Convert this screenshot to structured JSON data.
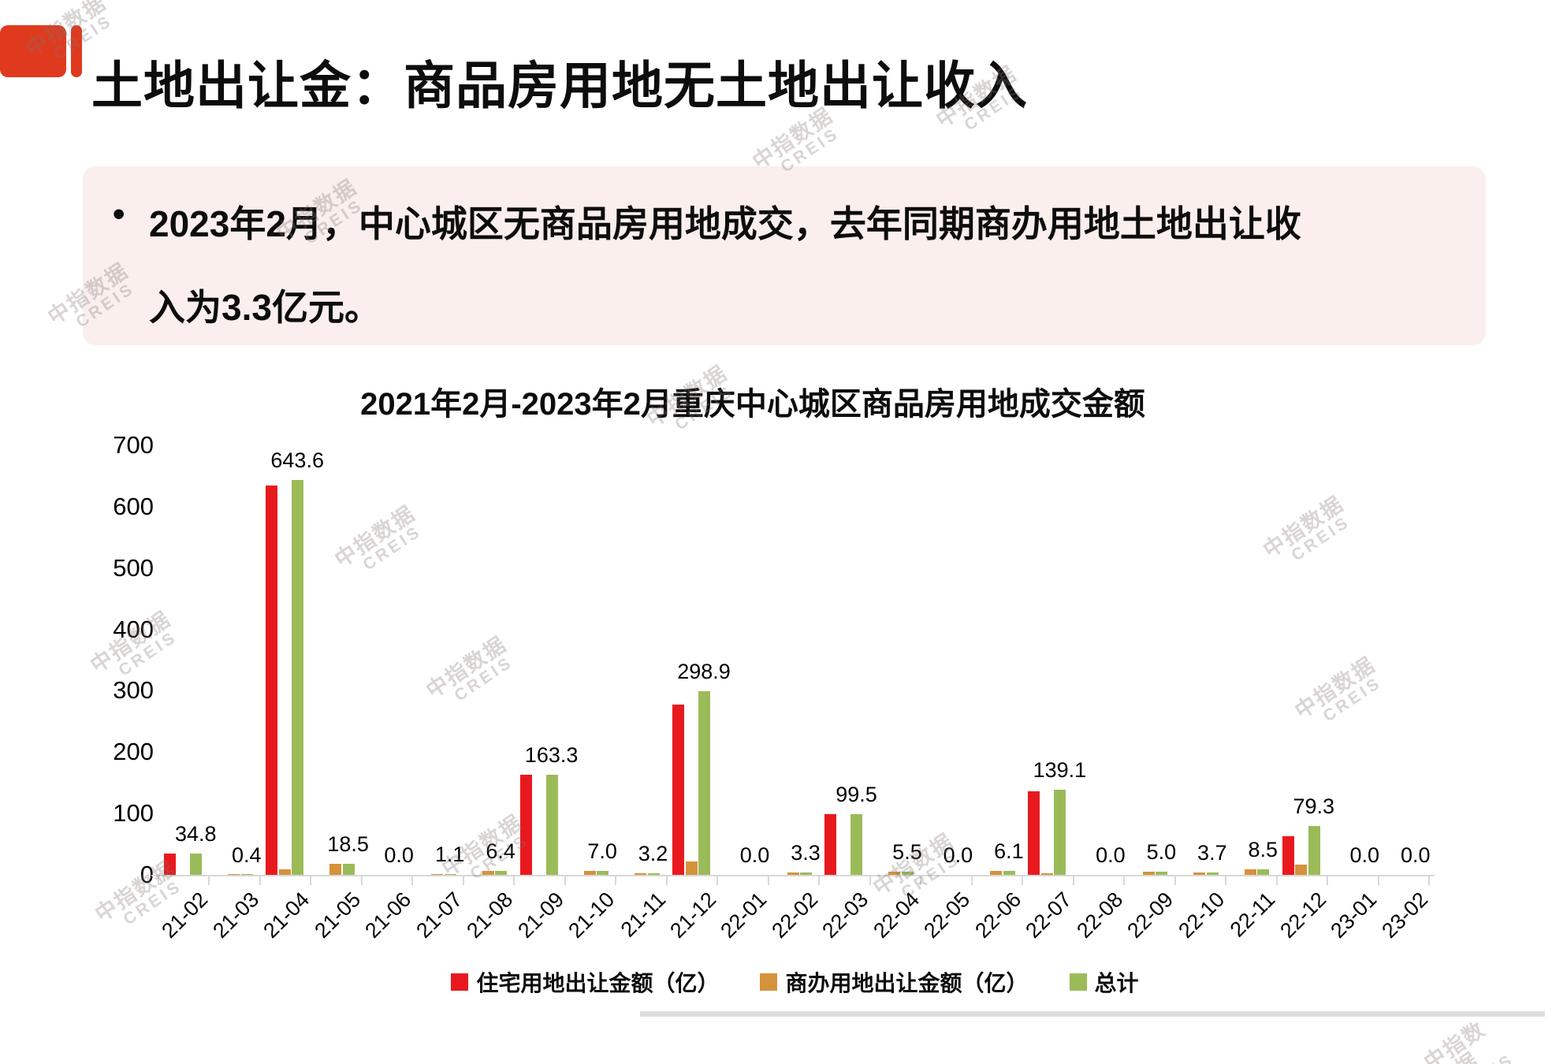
{
  "slide": {
    "title": "土地出让金：商品房用地无土地出让收入",
    "bullet_glyph": "•",
    "bullet_line1": "2023年2月，中心城区无商品房用地成交，去年同期商办用地土地出让收",
    "bullet_line2": "入为3.3亿元。",
    "watermark_line1": "中指数据",
    "watermark_line2": "CREIS"
  },
  "chart_data": {
    "type": "bar",
    "title": "2021年2月-2023年2月重庆中心城区商品房用地成交金额",
    "categories": [
      "21-02",
      "21-03",
      "21-04",
      "21-05",
      "21-06",
      "21-07",
      "21-08",
      "21-09",
      "21-10",
      "21-11",
      "21-12",
      "22-01",
      "22-02",
      "22-03",
      "22-04",
      "22-05",
      "22-06",
      "22-07",
      "22-08",
      "22-09",
      "22-10",
      "22-11",
      "22-12",
      "23-01",
      "23-02"
    ],
    "series": [
      {
        "name": "住宅用地出让金额（亿）",
        "color": "#E8191E",
        "values": [
          34.8,
          0,
          634.6,
          0,
          0,
          0,
          0,
          163.3,
          0,
          0,
          277.1,
          0,
          0,
          99.5,
          0,
          0,
          0,
          136.0,
          0,
          0,
          0,
          0,
          63.0,
          0,
          0
        ]
      },
      {
        "name": "商办用地出让金额（亿）",
        "color": "#D5923B",
        "values": [
          0,
          0.4,
          9.0,
          18.5,
          0,
          1.1,
          6.4,
          0,
          7.0,
          3.2,
          21.8,
          0,
          3.3,
          0,
          5.5,
          0,
          6.1,
          3.1,
          0,
          5.0,
          3.7,
          8.5,
          16.3,
          0,
          0
        ]
      },
      {
        "name": "总计",
        "color": "#9BBB59",
        "values": [
          34.8,
          0.4,
          643.6,
          18.5,
          0.0,
          1.1,
          6.4,
          163.3,
          7.0,
          3.2,
          298.9,
          0.0,
          3.3,
          99.5,
          5.5,
          0.0,
          6.1,
          139.1,
          0.0,
          5.0,
          3.7,
          8.5,
          79.3,
          0.0,
          0.0
        ]
      }
    ],
    "data_labels": [
      "34.8",
      "0.4",
      "643.6",
      "18.5",
      "0.0",
      "1.1",
      "6.4",
      "163.3",
      "7.0",
      "3.2",
      "298.9",
      "0.0",
      "3.3",
      "99.5",
      "5.5",
      "0.0",
      "6.1",
      "139.1",
      "0.0",
      "5.0",
      "3.7",
      "8.5",
      "79.3",
      "0.0",
      "0.0"
    ],
    "y_ticks": [
      0,
      100,
      200,
      300,
      400,
      500,
      600,
      700
    ],
    "ylim": [
      0,
      700
    ],
    "xlabel": "",
    "ylabel": "",
    "grid": false,
    "legend_position": "bottom"
  },
  "colors": {
    "accent_red": "#E03A1E",
    "callout_bg": "#FAEFEC",
    "axis_line": "#D8D8D8",
    "divider": "#DFDFDF",
    "watermark": "rgba(125,115,112,0.30)"
  }
}
